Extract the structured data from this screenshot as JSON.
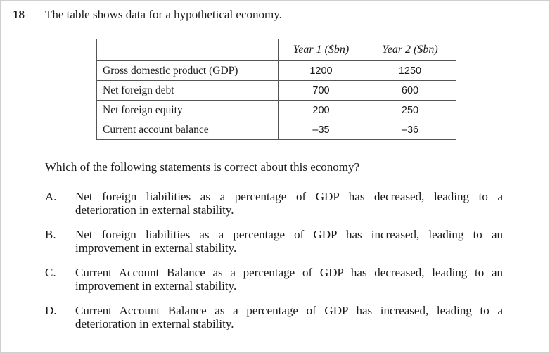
{
  "question": {
    "number": "18",
    "stem": "The table shows data for a hypothetical economy.",
    "prompt": "Which of the following statements is correct about this economy?"
  },
  "table": {
    "headers": [
      "",
      "Year 1 ($bn)",
      "Year 2 ($bn)"
    ],
    "rows": [
      {
        "label": "Gross domestic product (GDP)",
        "year1": "1200",
        "year2": "1250"
      },
      {
        "label": "Net foreign debt",
        "year1": "700",
        "year2": "600"
      },
      {
        "label": "Net foreign equity",
        "year1": "200",
        "year2": "250"
      },
      {
        "label": "Current account balance",
        "year1": "–35",
        "year2": "–36"
      }
    ]
  },
  "options": [
    {
      "letter": "A.",
      "line1": "Net foreign liabilities as a percentage of GDP has decreased, leading to a",
      "line2": "deterioration in external stability."
    },
    {
      "letter": "B.",
      "line1": "Net foreign liabilities as a percentage of GDP has increased, leading to an",
      "line2": "improvement in external stability."
    },
    {
      "letter": "C.",
      "line1": "Current Account Balance as a percentage of GDP has decreased, leading to an",
      "line2": "improvement in external stability."
    },
    {
      "letter": "D.",
      "line1": "Current Account Balance as a percentage of GDP has increased, leading to a",
      "line2": "deterioration in external stability."
    }
  ]
}
